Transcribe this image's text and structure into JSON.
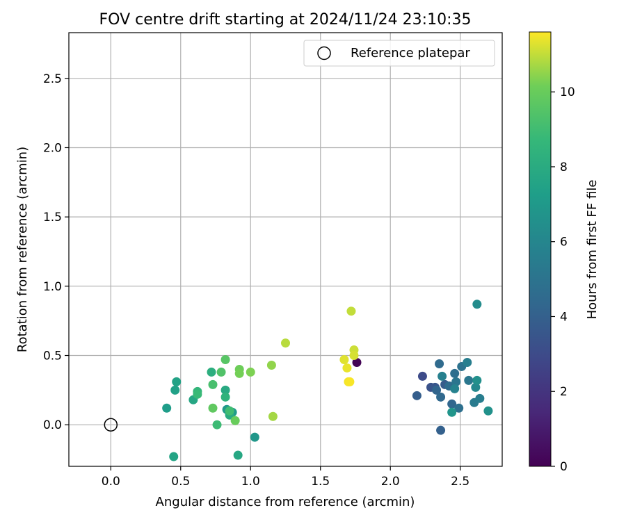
{
  "chart_data": {
    "type": "scatter",
    "title": "FOV centre drift starting at 2024/11/24 23:10:35",
    "xlabel": "Angular distance from reference (arcmin)",
    "ylabel": "Rotation from reference (arcmin)",
    "xlim": [
      -0.3,
      2.8
    ],
    "ylim": [
      -0.3,
      2.83
    ],
    "xticks": [
      "0.0",
      "0.5",
      "1.0",
      "1.5",
      "2.0",
      "2.5"
    ],
    "yticks": [
      "0.0",
      "0.5",
      "1.0",
      "1.5",
      "2.0",
      "2.5"
    ],
    "grid": true,
    "legend": {
      "placement": "top-right",
      "entries": [
        {
          "label": "Reference platepar",
          "marker": "open-circle"
        }
      ]
    },
    "reference_point": {
      "x": 0.0,
      "y": 0.0
    },
    "colorbar": {
      "label": "Hours from first FF file",
      "colormap": "viridis",
      "range": [
        0,
        11.6
      ],
      "ticks": [
        "0",
        "2",
        "4",
        "6",
        "8",
        "10"
      ]
    },
    "points": [
      {
        "x": 1.76,
        "y": 0.45,
        "h": 0.1
      },
      {
        "x": 2.23,
        "y": 0.35,
        "h": 3.0
      },
      {
        "x": 2.29,
        "y": 0.27,
        "h": 3.3
      },
      {
        "x": 2.32,
        "y": 0.27,
        "h": 3.5
      },
      {
        "x": 2.19,
        "y": 0.21,
        "h": 3.9
      },
      {
        "x": 2.36,
        "y": -0.04,
        "h": 4.0
      },
      {
        "x": 2.39,
        "y": 0.29,
        "h": 3.8
      },
      {
        "x": 2.33,
        "y": 0.25,
        "h": 4.2
      },
      {
        "x": 2.44,
        "y": 0.15,
        "h": 4.3
      },
      {
        "x": 2.36,
        "y": 0.2,
        "h": 4.4
      },
      {
        "x": 2.35,
        "y": 0.44,
        "h": 4.5
      },
      {
        "x": 2.42,
        "y": 0.28,
        "h": 4.6
      },
      {
        "x": 2.46,
        "y": 0.37,
        "h": 4.7
      },
      {
        "x": 2.49,
        "y": 0.12,
        "h": 4.8
      },
      {
        "x": 2.51,
        "y": 0.42,
        "h": 4.9
      },
      {
        "x": 2.47,
        "y": 0.31,
        "h": 5.1
      },
      {
        "x": 2.56,
        "y": 0.32,
        "h": 5.2
      },
      {
        "x": 2.6,
        "y": 0.16,
        "h": 5.4
      },
      {
        "x": 2.64,
        "y": 0.19,
        "h": 5.5
      },
      {
        "x": 2.55,
        "y": 0.45,
        "h": 5.6
      },
      {
        "x": 2.37,
        "y": 0.35,
        "h": 5.7
      },
      {
        "x": 2.46,
        "y": 0.26,
        "h": 5.8
      },
      {
        "x": 2.61,
        "y": 0.27,
        "h": 6.1
      },
      {
        "x": 2.62,
        "y": 0.87,
        "h": 6.3
      },
      {
        "x": 2.62,
        "y": 0.32,
        "h": 6.5
      },
      {
        "x": 2.7,
        "y": 0.1,
        "h": 6.6
      },
      {
        "x": 2.44,
        "y": 0.09,
        "h": 6.8
      },
      {
        "x": 1.03,
        "y": -0.09,
        "h": 6.9
      },
      {
        "x": 0.83,
        "y": 0.11,
        "h": 7.0
      },
      {
        "x": 0.87,
        "y": 0.09,
        "h": 7.1
      },
      {
        "x": 0.4,
        "y": 0.12,
        "h": 7.2
      },
      {
        "x": 0.46,
        "y": 0.25,
        "h": 7.4
      },
      {
        "x": 0.47,
        "y": 0.31,
        "h": 7.5
      },
      {
        "x": 0.45,
        "y": -0.23,
        "h": 7.6
      },
      {
        "x": 0.59,
        "y": 0.18,
        "h": 7.7
      },
      {
        "x": 0.91,
        "y": -0.22,
        "h": 7.8
      },
      {
        "x": 0.82,
        "y": 0.25,
        "h": 7.9
      },
      {
        "x": 0.85,
        "y": 0.07,
        "h": 8.0
      },
      {
        "x": 0.72,
        "y": 0.38,
        "h": 8.2
      },
      {
        "x": 0.82,
        "y": 0.2,
        "h": 8.4
      },
      {
        "x": 0.62,
        "y": 0.24,
        "h": 8.6
      },
      {
        "x": 0.62,
        "y": 0.22,
        "h": 8.8
      },
      {
        "x": 0.76,
        "y": 0.0,
        "h": 8.9
      },
      {
        "x": 0.85,
        "y": 0.1,
        "h": 9.0
      },
      {
        "x": 0.73,
        "y": 0.29,
        "h": 9.2
      },
      {
        "x": 0.79,
        "y": 0.38,
        "h": 9.4
      },
      {
        "x": 0.82,
        "y": 0.47,
        "h": 9.6
      },
      {
        "x": 0.73,
        "y": 0.12,
        "h": 9.8
      },
      {
        "x": 0.89,
        "y": 0.03,
        "h": 10.0
      },
      {
        "x": 0.92,
        "y": 0.4,
        "h": 10.1
      },
      {
        "x": 0.92,
        "y": 0.37,
        "h": 10.2
      },
      {
        "x": 1.0,
        "y": 0.38,
        "h": 10.3
      },
      {
        "x": 1.15,
        "y": 0.43,
        "h": 10.5
      },
      {
        "x": 1.16,
        "y": 0.06,
        "h": 10.7
      },
      {
        "x": 1.25,
        "y": 0.59,
        "h": 10.9
      },
      {
        "x": 1.72,
        "y": 0.82,
        "h": 11.0
      },
      {
        "x": 1.74,
        "y": 0.54,
        "h": 11.1
      },
      {
        "x": 1.74,
        "y": 0.5,
        "h": 11.2
      },
      {
        "x": 1.67,
        "y": 0.47,
        "h": 11.3
      },
      {
        "x": 1.69,
        "y": 0.41,
        "h": 11.4
      },
      {
        "x": 1.7,
        "y": 0.31,
        "h": 11.5
      },
      {
        "x": 1.71,
        "y": 0.31,
        "h": 11.55
      }
    ]
  }
}
